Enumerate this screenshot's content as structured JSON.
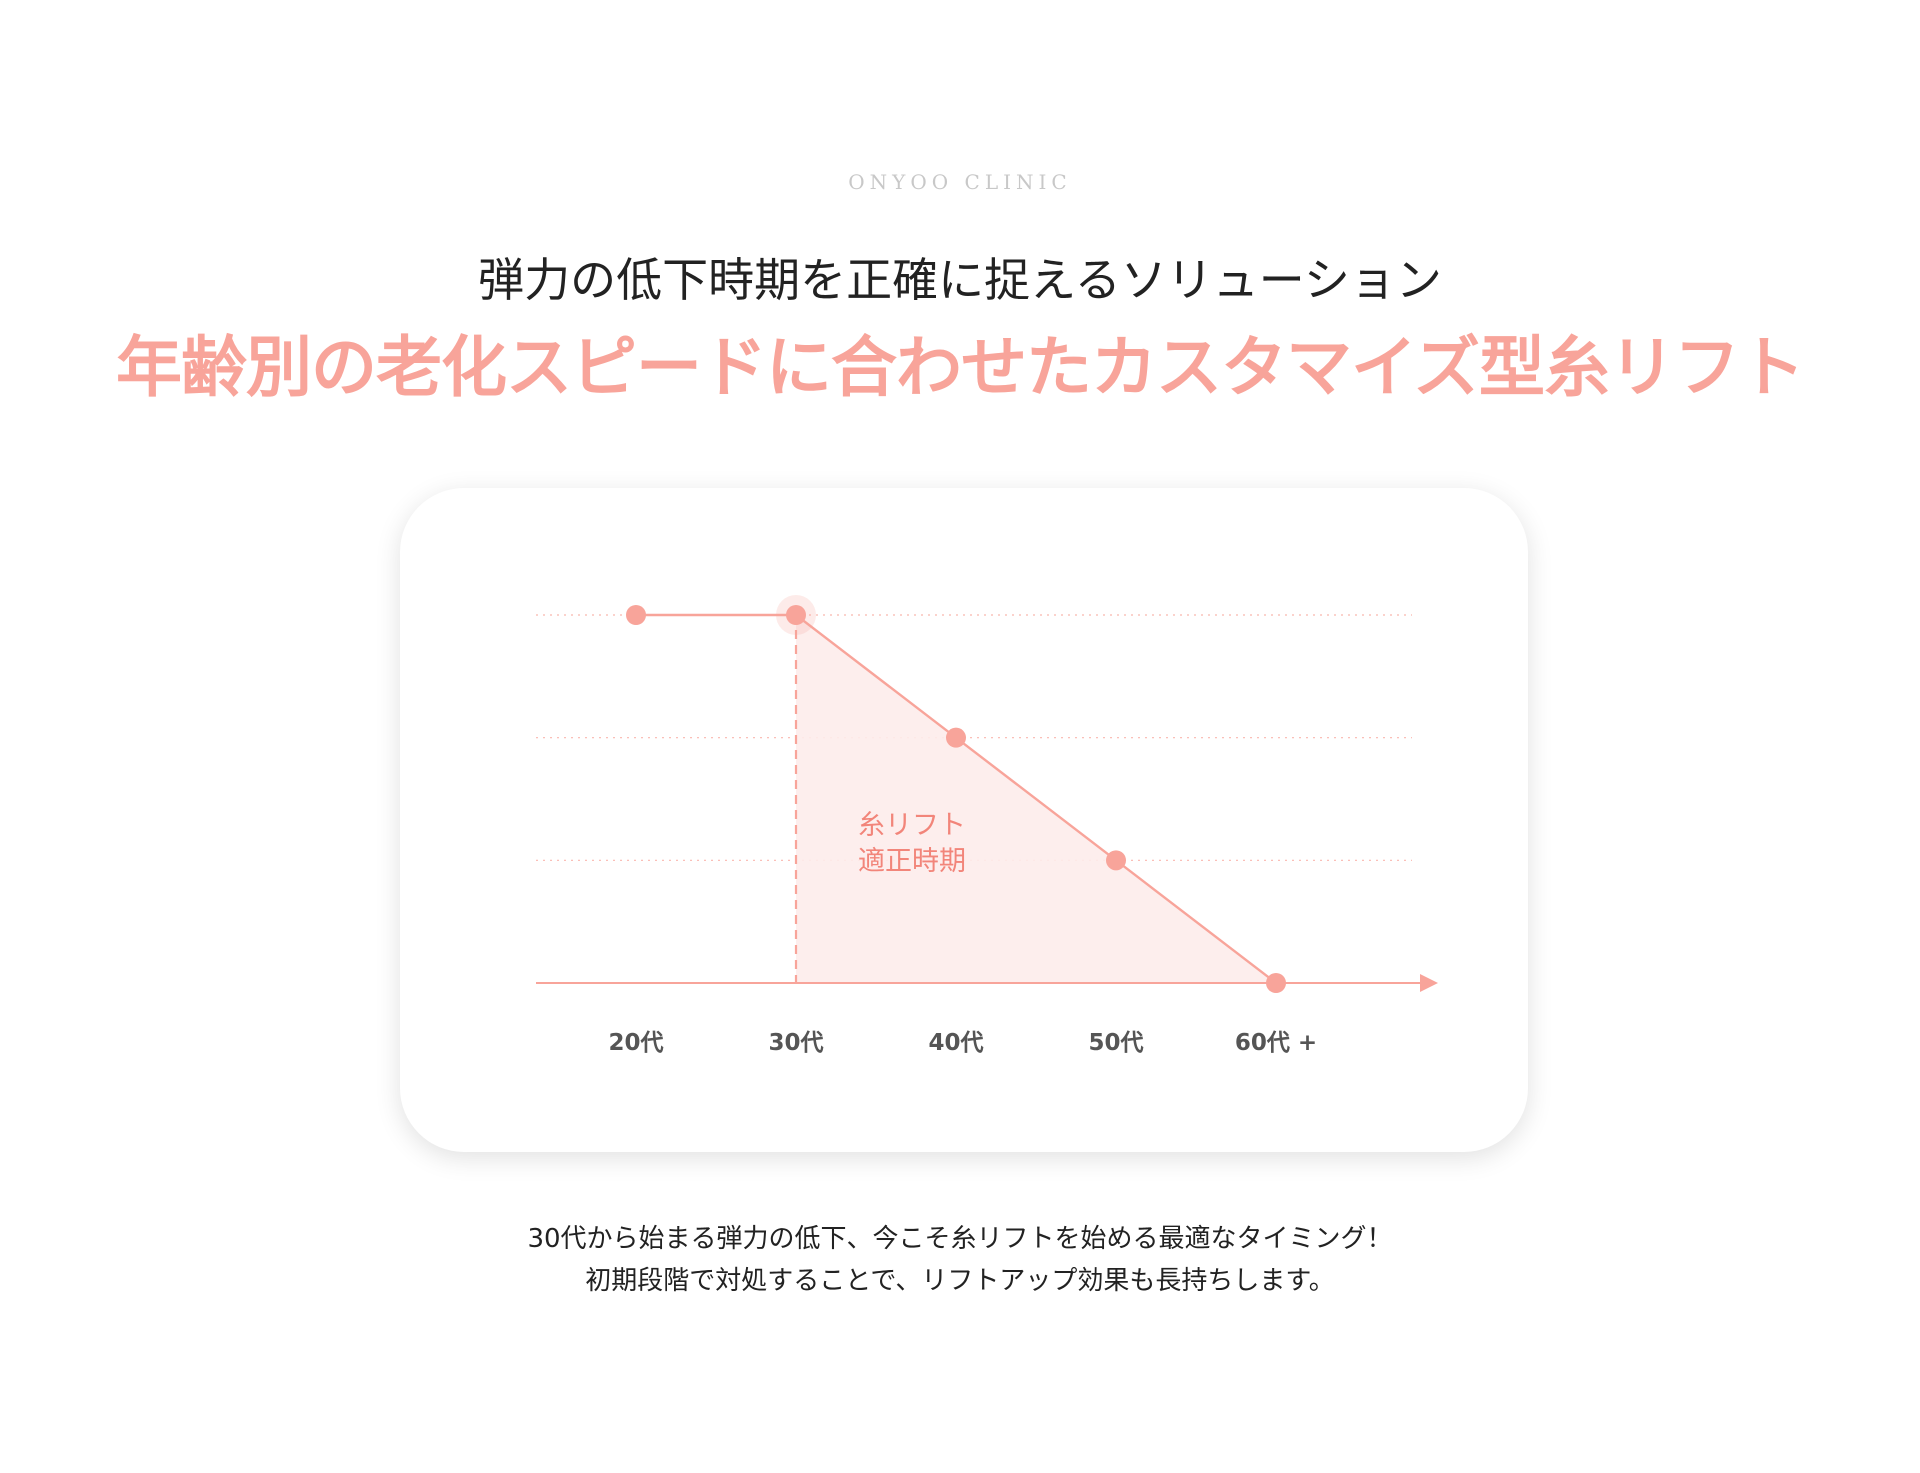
{
  "brand": "ONYOO CLINIC",
  "header": {
    "subtitle": "弾力の低下時期を正確に捉えるソリューション",
    "title": "年齢別の老化スピードに合わせたカスタマイズ型糸リフト"
  },
  "colors": {
    "accent": "#f8a49a",
    "area_fill": "#fdeceb",
    "area_label": "#f2857a",
    "tick_text": "#555555"
  },
  "chart_data": {
    "type": "line",
    "categories": [
      "20代",
      "30代",
      "40代",
      "50代",
      "60代 +"
    ],
    "values": [
      3,
      3,
      2,
      1,
      0
    ],
    "ylim": [
      0,
      3
    ],
    "grid": true,
    "highlight_index": 1,
    "shaded_region": {
      "from_category": "30代",
      "to_category": "60代 +",
      "label": [
        "糸リフト",
        "適正時期"
      ]
    }
  },
  "description": {
    "line1": "30代から始まる弾力の低下、今こそ糸リフトを始める最適なタイミング！",
    "line2": "初期段階で対処することで、リフトアップ効果も長持ちします。"
  }
}
